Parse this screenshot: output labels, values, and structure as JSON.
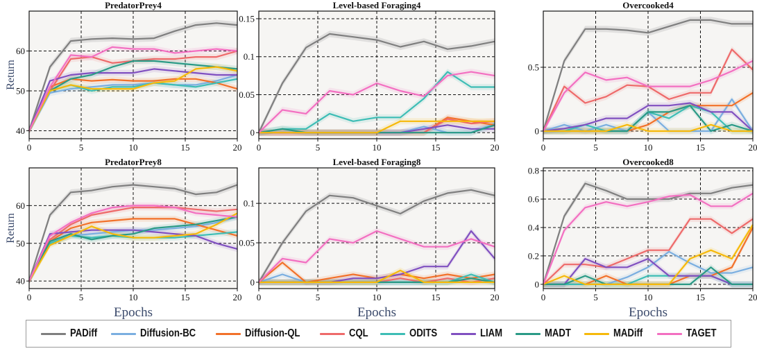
{
  "series_colors": {
    "PADiff": "#7f7f7f",
    "Diffusion-BC": "#7aaee0",
    "Diffusion-QL": "#f2712a",
    "CQL": "#ee6a6a",
    "ODITS": "#3dbdb5",
    "LIAM": "#8050c0",
    "MADT": "#2a9a86",
    "MADiff": "#f6b90a",
    "TAGET": "#f36fc1"
  },
  "legend": [
    "PADiff",
    "Diffusion-BC",
    "Diffusion-QL",
    "CQL",
    "ODITS",
    "LIAM",
    "MADT",
    "MADiff",
    "TAGET"
  ],
  "chart_data": [
    {
      "type": "line",
      "title": "PredatorPrey4",
      "xlabel": "",
      "ylabel": "Return",
      "x": [
        0,
        2,
        4,
        6,
        8,
        10,
        12,
        14,
        16,
        18,
        20
      ],
      "xlim": [
        0,
        20
      ],
      "ylim": [
        38,
        70
      ],
      "xticks": [
        0,
        5,
        10,
        15,
        20
      ],
      "yticks": [
        40,
        50,
        60
      ],
      "grid": true,
      "series": [
        {
          "name": "PADiff",
          "values": [
            40,
            56,
            62.5,
            63,
            63.2,
            63,
            63.2,
            65,
            66.5,
            67,
            66.5
          ]
        },
        {
          "name": "Diffusion-BC",
          "values": [
            40,
            49.5,
            50.5,
            51,
            51.5,
            51.5,
            52,
            51.5,
            51.5,
            52.5,
            54
          ]
        },
        {
          "name": "Diffusion-QL",
          "values": [
            40,
            51,
            53,
            52.5,
            52.8,
            52.5,
            52.5,
            53,
            53,
            52,
            50.5
          ]
        },
        {
          "name": "CQL",
          "values": [
            40,
            50,
            58,
            58.5,
            57,
            57.5,
            58,
            58,
            58.5,
            58.5,
            60
          ]
        },
        {
          "name": "ODITS",
          "values": [
            40,
            50,
            51.5,
            50,
            51,
            51,
            52,
            51.5,
            51,
            52,
            53
          ]
        },
        {
          "name": "LIAM",
          "values": [
            40,
            52.5,
            54,
            54.5,
            54.5,
            54.5,
            55.5,
            55,
            54.5,
            54,
            54
          ]
        },
        {
          "name": "MADT",
          "values": [
            40,
            50,
            53,
            54,
            56,
            57.5,
            57.5,
            57,
            56.5,
            56,
            55.5
          ]
        },
        {
          "name": "MADiff",
          "values": [
            40,
            50,
            51.5,
            50.5,
            50.5,
            50.5,
            52,
            52.5,
            55.5,
            56,
            55
          ]
        },
        {
          "name": "TAGET",
          "values": [
            40,
            51,
            59,
            58.5,
            61,
            60.5,
            60.5,
            59.5,
            60,
            60.5,
            60
          ]
        }
      ]
    },
    {
      "type": "line",
      "title": "Level-based Foraging4",
      "xlabel": "",
      "ylabel": "",
      "x": [
        0,
        2,
        4,
        6,
        8,
        10,
        12,
        14,
        16,
        18,
        20
      ],
      "xlim": [
        0,
        20
      ],
      "ylim": [
        -0.008,
        0.16
      ],
      "xticks": [
        0,
        5,
        10,
        15,
        20
      ],
      "yticks": [
        0,
        0.05,
        0.1,
        0.15
      ],
      "grid": true,
      "series": [
        {
          "name": "PADiff",
          "values": [
            0,
            0.065,
            0.112,
            0.13,
            0.126,
            0.122,
            0.113,
            0.12,
            0.11,
            0.114,
            0.12
          ]
        },
        {
          "name": "Diffusion-BC",
          "values": [
            0,
            0,
            0,
            0,
            0,
            0,
            0,
            0.008,
            0,
            0,
            0.012
          ]
        },
        {
          "name": "Diffusion-QL",
          "values": [
            0,
            0,
            0,
            0,
            0,
            0,
            0,
            0,
            0.02,
            0.015,
            0.01
          ]
        },
        {
          "name": "CQL",
          "values": [
            0,
            0,
            0,
            0,
            0,
            0,
            0,
            0,
            0.018,
            0.012,
            0.015
          ]
        },
        {
          "name": "ODITS",
          "values": [
            0,
            0.005,
            0.005,
            0.025,
            0.015,
            0.02,
            0.02,
            0.045,
            0.08,
            0.06,
            0.06
          ]
        },
        {
          "name": "LIAM",
          "values": [
            0,
            0,
            0,
            0,
            0,
            0,
            0,
            0.005,
            0.01,
            0.005,
            0.005
          ]
        },
        {
          "name": "MADT",
          "values": [
            0,
            0.005,
            0,
            0,
            0,
            0,
            0,
            0,
            0,
            0,
            0.01
          ]
        },
        {
          "name": "MADiff",
          "values": [
            0,
            0,
            0,
            0,
            0,
            0,
            0.015,
            0.015,
            0.015,
            0.015,
            0.015
          ]
        },
        {
          "name": "TAGET",
          "values": [
            0,
            0.03,
            0.025,
            0.055,
            0.05,
            0.065,
            0.055,
            0.048,
            0.075,
            0.08,
            0.075
          ]
        }
      ]
    },
    {
      "type": "line",
      "title": "Overcooked4",
      "xlabel": "",
      "ylabel": "",
      "x": [
        0,
        2,
        4,
        6,
        8,
        10,
        12,
        14,
        16,
        18,
        20
      ],
      "xlim": [
        0,
        20
      ],
      "ylim": [
        -0.06,
        0.94
      ],
      "xticks": [
        0,
        5,
        10,
        15,
        20
      ],
      "yticks": [
        0,
        0.5
      ],
      "grid": true,
      "series": [
        {
          "name": "PADiff",
          "values": [
            0,
            0.55,
            0.8,
            0.8,
            0.79,
            0.77,
            0.82,
            0.87,
            0.87,
            0.84,
            0.84
          ]
        },
        {
          "name": "Diffusion-BC",
          "values": [
            0,
            0.05,
            0,
            0.05,
            0,
            0.15,
            0,
            0,
            0,
            0.25,
            0
          ]
        },
        {
          "name": "Diffusion-QL",
          "values": [
            0,
            0,
            0,
            0,
            0,
            0.05,
            0.15,
            0.2,
            0.2,
            0.2,
            0.3
          ]
        },
        {
          "name": "CQL",
          "values": [
            0,
            0.35,
            0.22,
            0.27,
            0.36,
            0.35,
            0.25,
            0.3,
            0.3,
            0.64,
            0.48
          ]
        },
        {
          "name": "ODITS",
          "values": [
            0,
            0,
            0.05,
            0,
            0,
            0.15,
            0.1,
            0.2,
            0.15,
            0,
            0
          ]
        },
        {
          "name": "LIAM",
          "values": [
            0,
            0.02,
            0.05,
            0.1,
            0.1,
            0.2,
            0.2,
            0.22,
            0.15,
            0.15,
            0
          ]
        },
        {
          "name": "MADT",
          "values": [
            0,
            0,
            0,
            0,
            0,
            0.15,
            0.15,
            0.2,
            0,
            0.05,
            0
          ]
        },
        {
          "name": "MADiff",
          "values": [
            0,
            0,
            0,
            0,
            0.05,
            0,
            0,
            0,
            0.05,
            0,
            0
          ]
        },
        {
          "name": "TAGET",
          "values": [
            0,
            0.3,
            0.46,
            0.4,
            0.42,
            0.35,
            0.35,
            0.35,
            0.4,
            0.47,
            0.55
          ]
        }
      ]
    },
    {
      "type": "line",
      "title": "PredatorPrey8",
      "xlabel": "Epochs",
      "ylabel": "Return",
      "x": [
        0,
        2,
        4,
        6,
        8,
        10,
        12,
        14,
        16,
        18,
        20
      ],
      "xlim": [
        0,
        20
      ],
      "ylim": [
        38,
        70
      ],
      "xticks": [
        0,
        5,
        10,
        15,
        20
      ],
      "yticks": [
        40,
        50,
        60
      ],
      "grid": true,
      "series": [
        {
          "name": "PADiff",
          "values": [
            40,
            57.5,
            63.5,
            64,
            65,
            65.5,
            65,
            64.5,
            63,
            63.5,
            65.5
          ]
        },
        {
          "name": "Diffusion-BC",
          "values": [
            40,
            50,
            52,
            52.5,
            53,
            53.5,
            53.5,
            54,
            54.5,
            55.5,
            57
          ]
        },
        {
          "name": "Diffusion-QL",
          "values": [
            40,
            50.5,
            54,
            55.5,
            56,
            56.5,
            56.5,
            56.5,
            55,
            53.5,
            52
          ]
        },
        {
          "name": "CQL",
          "values": [
            40,
            51,
            55,
            57.5,
            58.5,
            59.5,
            59.5,
            59.5,
            59,
            58.5,
            59
          ]
        },
        {
          "name": "ODITS",
          "values": [
            40,
            50,
            52,
            51.5,
            52,
            51.5,
            51.5,
            51.5,
            52,
            52.5,
            53
          ]
        },
        {
          "name": "LIAM",
          "values": [
            40,
            52.5,
            53,
            53.5,
            53.5,
            53.5,
            53,
            52.5,
            52,
            50,
            48.5
          ]
        },
        {
          "name": "MADT",
          "values": [
            40,
            50.5,
            52.5,
            51,
            52,
            52.5,
            54,
            54.5,
            55,
            56,
            57
          ]
        },
        {
          "name": "MADiff",
          "values": [
            40,
            49.5,
            52,
            54.5,
            52.5,
            51.5,
            51.5,
            52,
            52.5,
            55,
            58
          ]
        },
        {
          "name": "TAGET",
          "values": [
            40,
            52,
            55.5,
            58,
            59.5,
            60,
            60,
            59.5,
            58,
            57.5,
            57
          ]
        }
      ]
    },
    {
      "type": "line",
      "title": "Level-based Foraging8",
      "xlabel": "Epochs",
      "ylabel": "",
      "x": [
        0,
        2,
        4,
        6,
        8,
        10,
        12,
        14,
        16,
        18,
        20
      ],
      "xlim": [
        0,
        20
      ],
      "ylim": [
        -0.008,
        0.145
      ],
      "xticks": [
        0,
        5,
        10,
        15,
        20
      ],
      "yticks": [
        0,
        0.05,
        0.1
      ],
      "grid": true,
      "series": [
        {
          "name": "PADiff",
          "values": [
            0,
            0.05,
            0.09,
            0.11,
            0.107,
            0.097,
            0.087,
            0.103,
            0.113,
            0.117,
            0.11
          ]
        },
        {
          "name": "Diffusion-BC",
          "values": [
            0,
            0.01,
            0,
            0,
            0,
            0,
            0,
            0,
            0,
            0,
            0
          ]
        },
        {
          "name": "Diffusion-QL",
          "values": [
            0,
            0.025,
            0,
            0.005,
            0.01,
            0.005,
            0.01,
            0.005,
            0.01,
            0.005,
            0.01
          ]
        },
        {
          "name": "CQL",
          "values": [
            0,
            0,
            0,
            0,
            0,
            0,
            0.005,
            0,
            0.005,
            0,
            0.005
          ]
        },
        {
          "name": "ODITS",
          "values": [
            0,
            0,
            0,
            0,
            0,
            0,
            0,
            0,
            0,
            0.01,
            0
          ]
        },
        {
          "name": "LIAM",
          "values": [
            0,
            0,
            0,
            0,
            0.005,
            0.005,
            0.01,
            0.02,
            0.02,
            0.065,
            0.03
          ]
        },
        {
          "name": "MADT",
          "values": [
            0,
            0,
            0,
            0,
            0,
            0,
            0,
            0,
            0,
            0.005,
            0
          ]
        },
        {
          "name": "MADiff",
          "values": [
            0,
            0,
            0,
            0,
            0,
            0,
            0.015,
            0,
            0,
            0,
            0
          ]
        },
        {
          "name": "TAGET",
          "values": [
            0,
            0.03,
            0.025,
            0.055,
            0.05,
            0.065,
            0.055,
            0.045,
            0.045,
            0.055,
            0.045
          ]
        }
      ]
    },
    {
      "type": "line",
      "title": "Overcooked8",
      "xlabel": "Epochs",
      "ylabel": "",
      "x": [
        0,
        2,
        4,
        6,
        8,
        10,
        12,
        14,
        16,
        18,
        20
      ],
      "xlim": [
        0,
        20
      ],
      "ylim": [
        -0.03,
        0.82
      ],
      "xticks": [
        0,
        5,
        10,
        15,
        20
      ],
      "yticks": [
        0,
        0.2,
        0.4,
        0.6,
        0.8
      ],
      "grid": true,
      "series": [
        {
          "name": "PADiff",
          "values": [
            0,
            0.48,
            0.71,
            0.66,
            0.6,
            0.6,
            0.6,
            0.64,
            0.64,
            0.68,
            0.7
          ]
        },
        {
          "name": "Diffusion-BC",
          "values": [
            0,
            0,
            0,
            0,
            0.05,
            0.12,
            0.23,
            0.15,
            0.08,
            0.08,
            0.12
          ]
        },
        {
          "name": "Diffusion-QL",
          "values": [
            0,
            0,
            0,
            0.06,
            0,
            0,
            0,
            0.06,
            0.06,
            0.12,
            0.4
          ]
        },
        {
          "name": "CQL",
          "values": [
            0,
            0.14,
            0.14,
            0.12,
            0.18,
            0.24,
            0.24,
            0.46,
            0.46,
            0.36,
            0.46
          ]
        },
        {
          "name": "ODITS",
          "values": [
            0,
            0,
            0,
            0,
            0,
            0.06,
            0.06,
            0.06,
            0.06,
            0,
            0
          ]
        },
        {
          "name": "LIAM",
          "values": [
            0,
            0,
            0.18,
            0.12,
            0.12,
            0.18,
            0.06,
            0.06,
            0.06,
            0,
            0
          ]
        },
        {
          "name": "MADT",
          "values": [
            0,
            0,
            0.06,
            0,
            0,
            0,
            0,
            0,
            0.12,
            0,
            0
          ]
        },
        {
          "name": "MADiff",
          "values": [
            0,
            0.06,
            0,
            0,
            0,
            0,
            0,
            0.18,
            0.24,
            0.18,
            0.42
          ]
        },
        {
          "name": "TAGET",
          "values": [
            0,
            0.38,
            0.54,
            0.58,
            0.55,
            0.58,
            0.62,
            0.63,
            0.55,
            0.55,
            0.64
          ]
        }
      ]
    }
  ]
}
